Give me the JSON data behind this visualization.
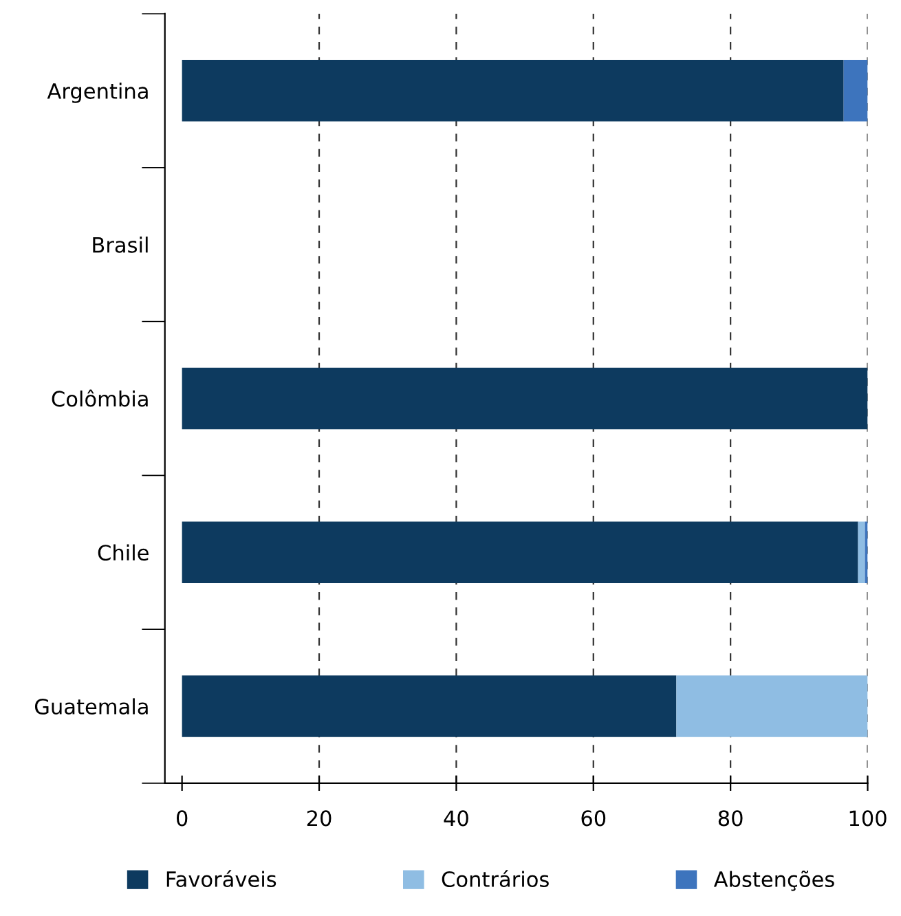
{
  "chart_data": {
    "type": "bar",
    "orientation": "horizontal",
    "stacked": true,
    "categories": [
      "Argentina",
      "Brasil",
      "Colômbia",
      "Chile",
      "Guatemala"
    ],
    "series": [
      {
        "name": "Favoráveis",
        "color": "#0d3a5f",
        "values": [
          96.5,
          null,
          100,
          98.6,
          72.1
        ]
      },
      {
        "name": "Contrários",
        "color": "#8fbde3",
        "values": [
          0,
          null,
          0,
          1.0,
          27.9
        ]
      },
      {
        "name": "Abstenções",
        "color": "#3d74bd",
        "values": [
          3.5,
          null,
          0,
          0.4,
          0
        ]
      }
    ],
    "xlim": [
      -2.5,
      100
    ],
    "xticks": [
      0,
      20,
      40,
      60,
      80,
      100
    ],
    "grid": "x",
    "legend": "bottom"
  }
}
